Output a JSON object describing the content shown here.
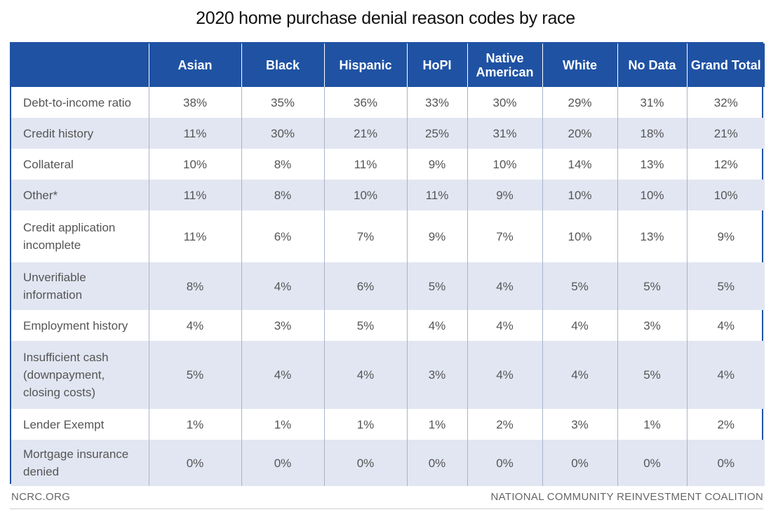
{
  "chart_data": {
    "type": "table",
    "title": "2020 home purchase denial reason codes by race",
    "columns": [
      "Asian",
      "Black",
      "Hispanic",
      "HoPI",
      "Native\nAmerican",
      "White",
      "No Data",
      "Grand Total"
    ],
    "rows": [
      {
        "label": "Debt-to-income ratio",
        "values": [
          "38%",
          "35%",
          "36%",
          "33%",
          "30%",
          "29%",
          "31%",
          "32%"
        ]
      },
      {
        "label": "Credit history",
        "values": [
          "11%",
          "30%",
          "21%",
          "25%",
          "31%",
          "20%",
          "18%",
          "21%"
        ]
      },
      {
        "label": "Collateral",
        "values": [
          "10%",
          "8%",
          "11%",
          "9%",
          "10%",
          "14%",
          "13%",
          "12%"
        ]
      },
      {
        "label": "Other*",
        "values": [
          "11%",
          "8%",
          "10%",
          "11%",
          "9%",
          "10%",
          "10%",
          "10%"
        ]
      },
      {
        "label": "Credit application\nincomplete",
        "values": [
          "11%",
          "6%",
          "7%",
          "9%",
          "7%",
          "10%",
          "13%",
          "9%"
        ]
      },
      {
        "label": "Unverifiable\ninformation",
        "values": [
          "8%",
          "4%",
          "6%",
          "5%",
          "4%",
          "5%",
          "5%",
          "5%"
        ]
      },
      {
        "label": "Employment history",
        "values": [
          "4%",
          "3%",
          "5%",
          "4%",
          "4%",
          "4%",
          "3%",
          "4%"
        ]
      },
      {
        "label": "Insufficient cash\n(downpayment,\nclosing costs)",
        "values": [
          "5%",
          "4%",
          "4%",
          "3%",
          "4%",
          "4%",
          "5%",
          "4%"
        ]
      },
      {
        "label": "Lender Exempt",
        "values": [
          "1%",
          "1%",
          "1%",
          "1%",
          "2%",
          "3%",
          "1%",
          "2%"
        ]
      },
      {
        "label": "Mortgage insurance\ndenied",
        "values": [
          "0%",
          "0%",
          "0%",
          "0%",
          "0%",
          "0%",
          "0%",
          "0%"
        ]
      }
    ]
  },
  "footer": {
    "left": "NCRC.ORG",
    "right": "NATIONAL COMMUNITY REINVESTMENT COALITION"
  },
  "colors": {
    "header_bg": "#1f52a3",
    "alt_row_bg": "#e2e6f2"
  }
}
